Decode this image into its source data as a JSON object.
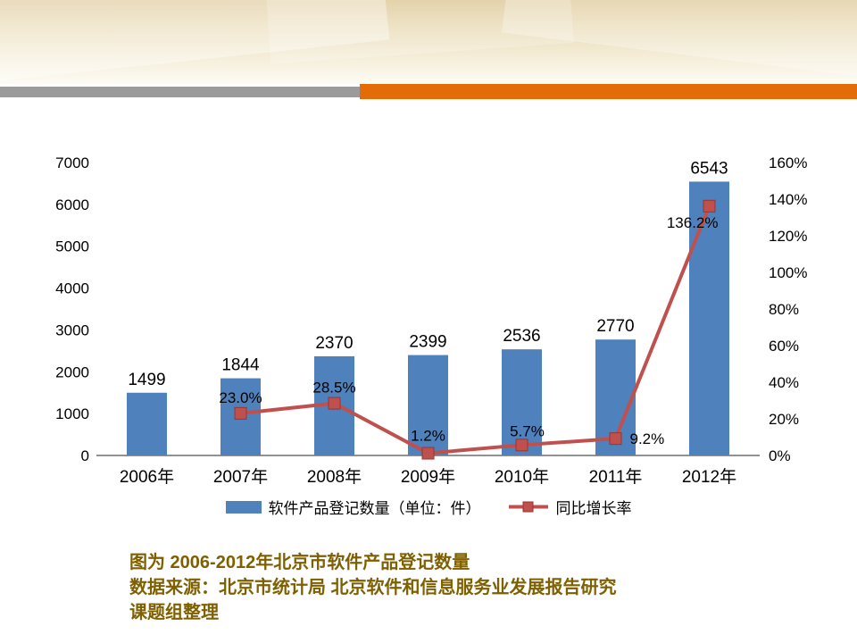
{
  "colors": {
    "bar": "#4F81BD",
    "line": "#C0504D",
    "caption": "#7F6000",
    "stripe_gray": "#9B9B9B",
    "stripe_orange": "#E36C09"
  },
  "chart_data": {
    "type": "combo-bar-line",
    "categories": [
      "2006年",
      "2007年",
      "2008年",
      "2009年",
      "2010年",
      "2011年",
      "2012年"
    ],
    "series": [
      {
        "name": "软件产品登记数量（单位：件）",
        "type": "bar",
        "axis": "left",
        "values": [
          1499,
          1844,
          2370,
          2399,
          2536,
          2770,
          6543
        ],
        "labels": [
          "1499",
          "1844",
          "2370",
          "2399",
          "2536",
          "2770",
          "6543"
        ]
      },
      {
        "name": "同比增长率",
        "type": "line",
        "axis": "right",
        "values": [
          null,
          23.0,
          28.5,
          1.2,
          5.7,
          9.2,
          136.2
        ],
        "labels": [
          null,
          "23.0%",
          "28.5%",
          "1.2%",
          "5.7%",
          "9.2%",
          "136.2%"
        ]
      }
    ],
    "left_axis": {
      "min": 0,
      "max": 7000,
      "step": 1000,
      "ticks": [
        "0",
        "1000",
        "2000",
        "3000",
        "4000",
        "5000",
        "6000",
        "7000"
      ]
    },
    "right_axis": {
      "min": 0,
      "max": 160,
      "step": 20,
      "ticks": [
        "0%",
        "20%",
        "40%",
        "60%",
        "80%",
        "100%",
        "120%",
        "140%",
        "160%"
      ]
    },
    "legend": [
      {
        "label": "软件产品登记数量（单位：件）",
        "marker": "bar"
      },
      {
        "label": "同比增长率",
        "marker": "line-square"
      }
    ],
    "grid": false,
    "legend_position": "bottom"
  },
  "caption": {
    "line1": "图为 2006-2012年北京市软件产品登记数量",
    "line2": "数据来源：北京市统计局 北京软件和信息服务业发展报告研究",
    "line3": "课题组整理"
  }
}
